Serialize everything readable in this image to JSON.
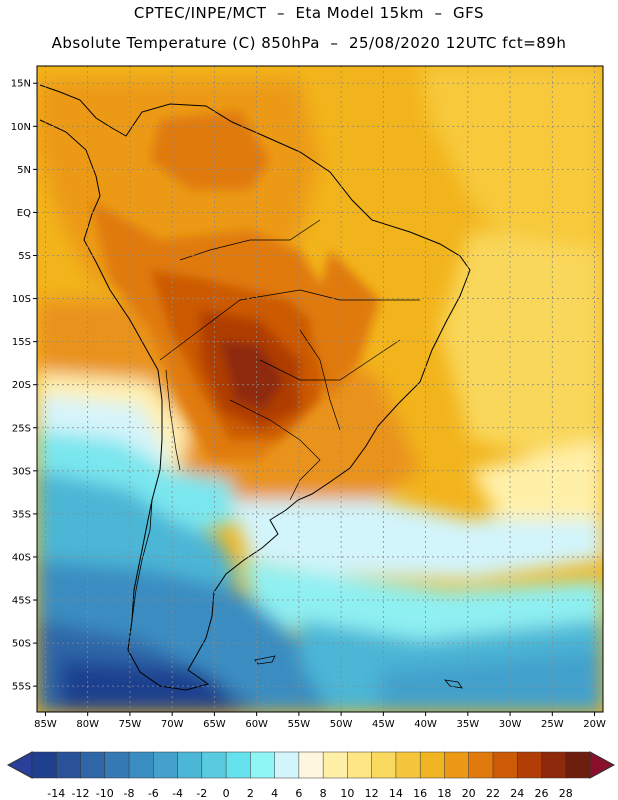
{
  "header": {
    "line1": "CPTEC/INPE/MCT  –  Eta Model 15km  –  GFS",
    "line2": "Absolute Temperature (C) 850hPa  –  25/08/2020 12UTC fct=89h"
  },
  "map": {
    "extent": {
      "lon_min": -86,
      "lon_max": -19,
      "lat_min": -58,
      "lat_max": 17
    },
    "lat_ticks": [
      {
        "label": "15N",
        "lat": 15
      },
      {
        "label": "10N",
        "lat": 10
      },
      {
        "label": "5N",
        "lat": 5
      },
      {
        "label": "EQ",
        "lat": 0
      },
      {
        "label": "5S",
        "lat": -5
      },
      {
        "label": "10S",
        "lat": -10
      },
      {
        "label": "15S",
        "lat": -15
      },
      {
        "label": "20S",
        "lat": -20
      },
      {
        "label": "25S",
        "lat": -25
      },
      {
        "label": "30S",
        "lat": -30
      },
      {
        "label": "35S",
        "lat": -35
      },
      {
        "label": "40S",
        "lat": -40
      },
      {
        "label": "45S",
        "lat": -45
      },
      {
        "label": "50S",
        "lat": -50
      },
      {
        "label": "55S",
        "lat": -55
      }
    ],
    "lon_ticks": [
      {
        "label": "85W",
        "lon": -85
      },
      {
        "label": "80W",
        "lon": -80
      },
      {
        "label": "75W",
        "lon": -75
      },
      {
        "label": "70W",
        "lon": -70
      },
      {
        "label": "65W",
        "lon": -65
      },
      {
        "label": "60W",
        "lon": -60
      },
      {
        "label": "55W",
        "lon": -55
      },
      {
        "label": "50W",
        "lon": -50
      },
      {
        "label": "45W",
        "lon": -45
      },
      {
        "label": "40W",
        "lon": -40
      },
      {
        "label": "35W",
        "lon": -35
      },
      {
        "label": "30W",
        "lon": -30
      },
      {
        "label": "25W",
        "lon": -25
      },
      {
        "label": "20W",
        "lon": -20
      }
    ]
  },
  "colorbar": {
    "labels": [
      "-14",
      "-12",
      "-10",
      "-8",
      "-6",
      "-4",
      "-2",
      "0",
      "2",
      "4",
      "6",
      "8",
      "10",
      "12",
      "14",
      "16",
      "18",
      "20",
      "22",
      "24",
      "26",
      "28"
    ],
    "colors": [
      "#1f3f8f",
      "#2a5298",
      "#2f66a8",
      "#3579b5",
      "#3a8dc1",
      "#43a1cc",
      "#4cb6d6",
      "#58cbe0",
      "#66e2ee",
      "#8ff5f5",
      "#d2f4fb",
      "#fff6de",
      "#fff0a8",
      "#fde683",
      "#f9d95f",
      "#f5c63c",
      "#f1b422",
      "#ec9916",
      "#e07a0c",
      "#cc5a06",
      "#b03e06",
      "#8e2a0b",
      "#6e1e0e"
    ],
    "low_extend_color": "#2a3f9a",
    "high_extend_color": "#8a0f2a"
  }
}
